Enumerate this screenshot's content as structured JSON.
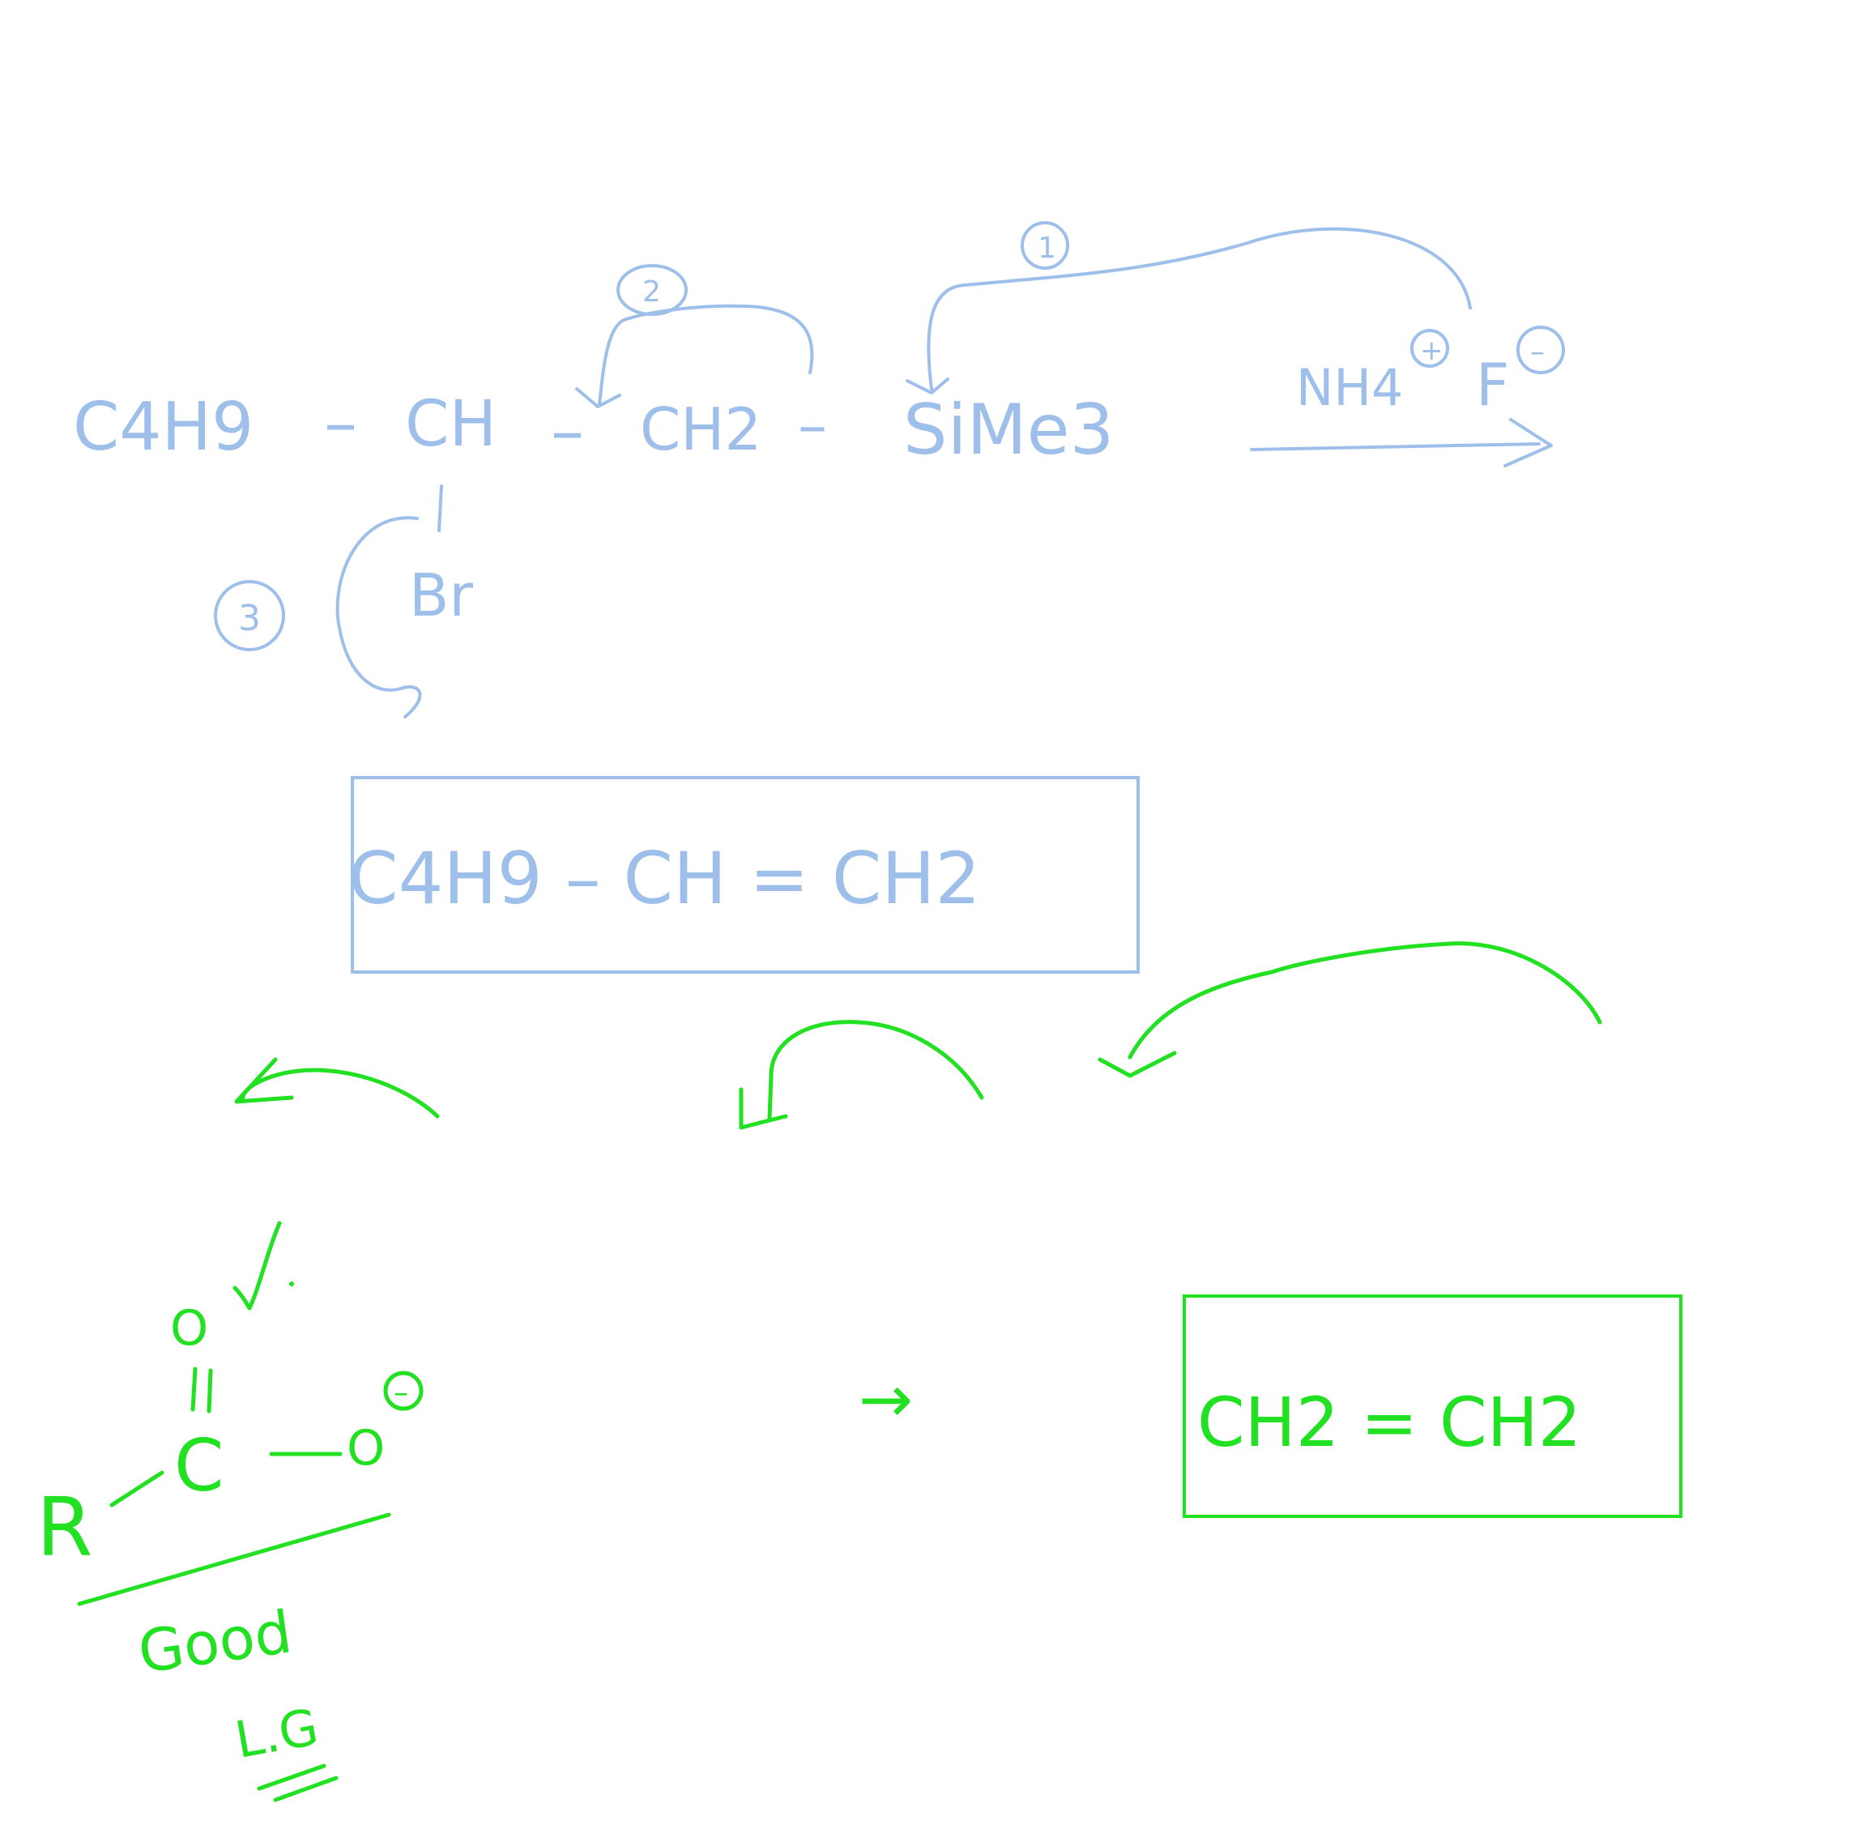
{
  "colors": {
    "blue_ink": "#9dbfea",
    "green_ink": "#22e022",
    "background": "#ffffff"
  },
  "reaction": {
    "reactant": {
      "c4h9": "C4H9",
      "bond1": "–",
      "ch": "CH",
      "bond2": "–",
      "ch2": "CH2",
      "bond3": "–",
      "sime3": "SiMe3",
      "br": "Br"
    },
    "reagent": {
      "nh4": "NH4",
      "plus": "+",
      "f": "F",
      "minus": "–"
    },
    "step_labels": [
      "1",
      "2",
      "3"
    ],
    "product": {
      "text": "C4H9 – CH = CH2"
    }
  },
  "carboxylate": {
    "r": "R",
    "c": "C",
    "o_top": "O",
    "o_minus": "O",
    "minus": "–",
    "check": "√",
    "note_line1": "Good",
    "note_line2": "L.G"
  },
  "ethylene_product": {
    "text": "CH2 = CH2"
  },
  "arrow_symbol": "→"
}
